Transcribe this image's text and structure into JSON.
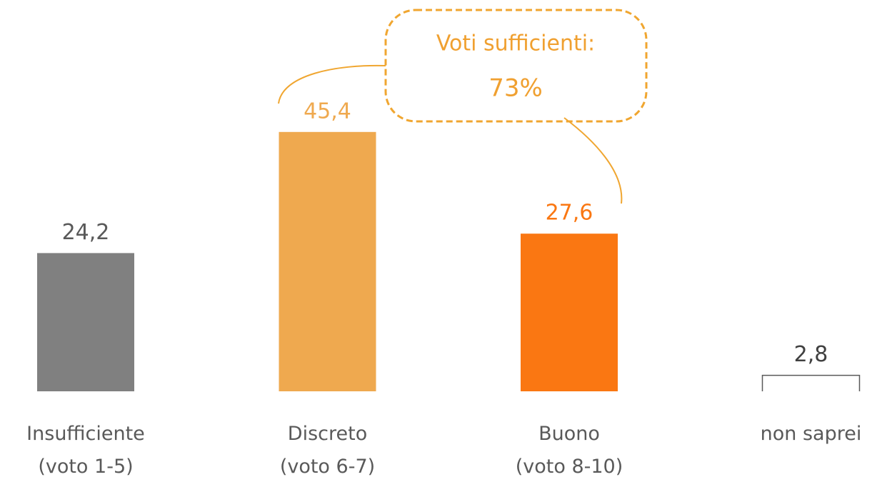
{
  "chart_data": {
    "type": "bar",
    "categories": [
      "Insufficiente\n(voto 1-5)",
      "Discreto\n(voto 6-7)",
      "Buono\n(voto 8-10)",
      "non saprei"
    ],
    "values": [
      24.2,
      45.4,
      27.6,
      2.8
    ],
    "value_labels": [
      "24,2",
      "45,4",
      "27,6",
      "2,8"
    ],
    "colors": [
      "#808080",
      "#EFA94F",
      "#FA7712",
      "#FFFFFF"
    ],
    "label_colors": [
      "#595959",
      "#EFA94F",
      "#FA7712",
      "#404040"
    ],
    "ylim": [
      0,
      68.5
    ],
    "annotation": {
      "title": "Voti sufficienti:",
      "value_label": "73%"
    }
  }
}
